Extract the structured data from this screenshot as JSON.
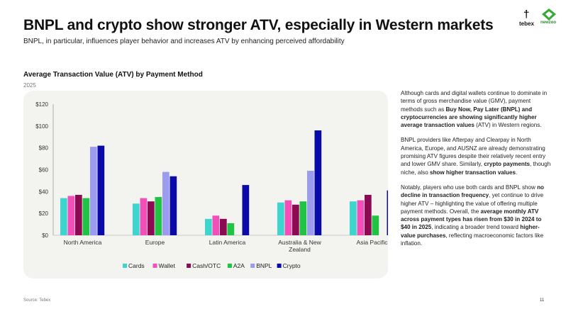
{
  "header": {
    "title": "BNPL and crypto show stronger ATV, especially in Western markets",
    "subtitle": "BNPL, in particular, influences player behavior and increases ATV by enhancing perceived affordability"
  },
  "logos": {
    "tebex": "tebex",
    "newzoo": "newzoo"
  },
  "chart_data": {
    "type": "bar",
    "title": "Average Transaction Value (ATV) by Payment Method",
    "subtitle": "2025",
    "categories": [
      "North America",
      "Europe",
      "Latin America",
      "Australia & New Zealand",
      "Asia Pacific"
    ],
    "category_lines": [
      [
        "North America"
      ],
      [
        "Europe"
      ],
      [
        "Latin America"
      ],
      [
        "Australia & New",
        "Zealand"
      ],
      [
        "Asia Pacific"
      ]
    ],
    "series": [
      {
        "name": "Cards",
        "color": "#3dd6cf",
        "values": [
          34,
          29,
          15,
          30,
          31
        ]
      },
      {
        "name": "Wallet",
        "color": "#f24fb8",
        "values": [
          36,
          34,
          18,
          32,
          32
        ]
      },
      {
        "name": "Cash/OTC",
        "color": "#8c0a52",
        "values": [
          37,
          31,
          15,
          28,
          37
        ]
      },
      {
        "name": "A2A",
        "color": "#22c244",
        "values": [
          34,
          35,
          11,
          31,
          18
        ]
      },
      {
        "name": "BNPL",
        "color": "#9b9bf0",
        "values": [
          81,
          58,
          null,
          59,
          null
        ]
      },
      {
        "name": "Crypto",
        "color": "#0a0aa8",
        "values": [
          82,
          54,
          46,
          96,
          41
        ]
      }
    ],
    "yticks": [
      "$0",
      "$20",
      "$40",
      "$60",
      "$80",
      "$100",
      "$120"
    ],
    "ylim": [
      0,
      120
    ],
    "legend_position": "bottom",
    "grid": false
  },
  "side_text": {
    "p1": [
      {
        "t": "Although cards and digital wallets continue to dominate in terms of gross merchandise value (GMV), payment methods such as ",
        "b": false
      },
      {
        "t": "Buy Now, Pay Later (BNPL) and cryptocurrencies are showing significantly higher average transaction values",
        "b": true
      },
      {
        "t": " (ATV) in Western regions.",
        "b": false
      }
    ],
    "p2": [
      {
        "t": "BNPL providers like Afterpay and Clearpay in North America, Europe, and AUSNZ are already demonstrating promising ATV figures despite their relatively recent entry and lower GMV share. Similarly, ",
        "b": false
      },
      {
        "t": "crypto payments",
        "b": true
      },
      {
        "t": ", though niche, also ",
        "b": false
      },
      {
        "t": "show higher transaction values",
        "b": true
      },
      {
        "t": ".",
        "b": false
      }
    ],
    "p3": [
      {
        "t": "Notably, players who use both cards and BNPL show ",
        "b": false
      },
      {
        "t": "no decline in transaction frequency",
        "b": true
      },
      {
        "t": ", yet continue to drive higher ATV – highlighting the value of offering multiple payment methods. Overall, the ",
        "b": false
      },
      {
        "t": "average monthly ATV across payment types has risen from $30 in 2024 to $40 in 2025",
        "b": true
      },
      {
        "t": ", indicating a broader trend toward ",
        "b": false
      },
      {
        "t": "higher-value purchases",
        "b": true
      },
      {
        "t": ", reflecting macroeconomic factors like inflation.",
        "b": false
      }
    ]
  },
  "footer": {
    "source": "Source: Tebex",
    "page": "11"
  }
}
